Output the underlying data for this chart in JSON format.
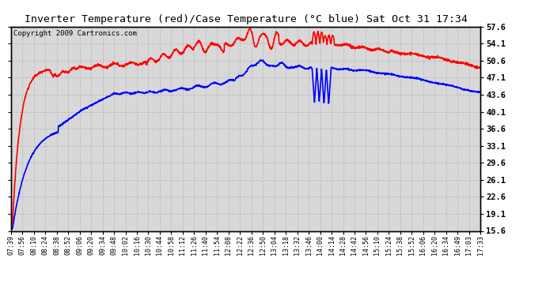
{
  "title": "Inverter Temperature (red)/Case Temperature (°C blue) Sat Oct 31 17:34",
  "copyright": "Copyright 2009 Cartronics.com",
  "yticks": [
    15.6,
    19.1,
    22.6,
    26.1,
    29.6,
    33.1,
    36.6,
    40.1,
    43.6,
    47.1,
    50.6,
    54.1,
    57.6
  ],
  "ymin": 15.6,
  "ymax": 57.6,
  "bg_color": "#ffffff",
  "plot_bg_color": "#d8d8d8",
  "grid_color": "#bbbbbb",
  "xtick_labels": [
    "07:39",
    "07:56",
    "08:10",
    "08:24",
    "08:38",
    "08:52",
    "09:06",
    "09:20",
    "09:34",
    "09:48",
    "10:02",
    "10:16",
    "10:30",
    "10:44",
    "10:58",
    "11:12",
    "11:26",
    "11:40",
    "11:54",
    "12:08",
    "12:22",
    "12:36",
    "12:50",
    "13:04",
    "13:18",
    "13:32",
    "13:46",
    "14:00",
    "14:14",
    "14:28",
    "14:42",
    "14:56",
    "15:10",
    "15:24",
    "15:38",
    "15:52",
    "16:06",
    "16:20",
    "16:34",
    "16:49",
    "17:03",
    "17:33"
  ]
}
